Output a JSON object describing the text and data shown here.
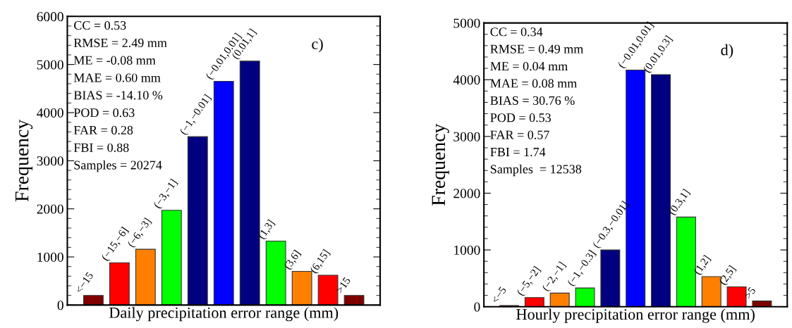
{
  "chart_data": [
    {
      "type": "bar",
      "xlabel": "Daily precipitation error range (mm)",
      "ylabel": "Frequency",
      "categories": [
        "<−15",
        "(−15,−6]",
        "(−6,−3]",
        "(−3,−1]",
        "(−1,−0.01]",
        "(−0.01,0.01]",
        "(0.01,1]",
        "(1,3]",
        "(3,6]",
        "(6,15]",
        ">15"
      ],
      "values": [
        200,
        880,
        1160,
        1970,
        3500,
        4650,
        5070,
        1330,
        700,
        620,
        200
      ],
      "colors": [
        "#800000",
        "#ff0000",
        "#ff8000",
        "#00ff00",
        "#000080",
        "#0000ff",
        "#000080",
        "#00ff00",
        "#ff8000",
        "#ff0000",
        "#800000"
      ],
      "ylim": [
        0,
        6000
      ],
      "yticks": [
        0,
        1000,
        2000,
        3000,
        4000,
        5000,
        6000
      ],
      "grid": false,
      "tick_labels": "y",
      "annotations": [
        "CC = 0.53",
        "RMSE = 2.49 mm",
        "ME = -0.08 mm",
        "MAE = 0.60 mm",
        "BIAS = -14.10 %",
        "POD = 0.63",
        "FAR = 0.28",
        "FBI = 0.88",
        "Samples = 20274",
        "c)"
      ]
    },
    {
      "type": "bar",
      "xlabel": "Hourly precipitation error range (mm)",
      "ylabel": "Frequency",
      "categories": [
        "<−5",
        "(−5,−2]",
        "(−2,−1]",
        "(−1,−0.3]",
        "(−0.3,−0.01]",
        "(−0.01,0.01]",
        "(0.01,0.3]",
        "(0.3,1]",
        "(1,2]",
        "(2,5]",
        ">5"
      ],
      "values": [
        20,
        160,
        240,
        330,
        1000,
        4170,
        4090,
        1580,
        530,
        350,
        100
      ],
      "colors": [
        "#800000",
        "#ff0000",
        "#ff8000",
        "#00ff00",
        "#000080",
        "#0000ff",
        "#000080",
        "#00ff00",
        "#ff8000",
        "#ff0000",
        "#800000"
      ],
      "ylim": [
        0,
        5000
      ],
      "yticks": [
        0,
        1000,
        2000,
        3000,
        4000,
        5000
      ],
      "grid": false,
      "tick_labels": "y",
      "annotations": [
        "CC = 0.34",
        "RMSE = 0.49 mm",
        "ME = 0.04 mm",
        "MAE = 0.08 mm",
        "BIAS = 30.76 %",
        "POD = 0.53",
        "FAR = 0.57",
        "FBI = 1.74",
        "Samples  = 12538",
        "d)"
      ]
    }
  ]
}
